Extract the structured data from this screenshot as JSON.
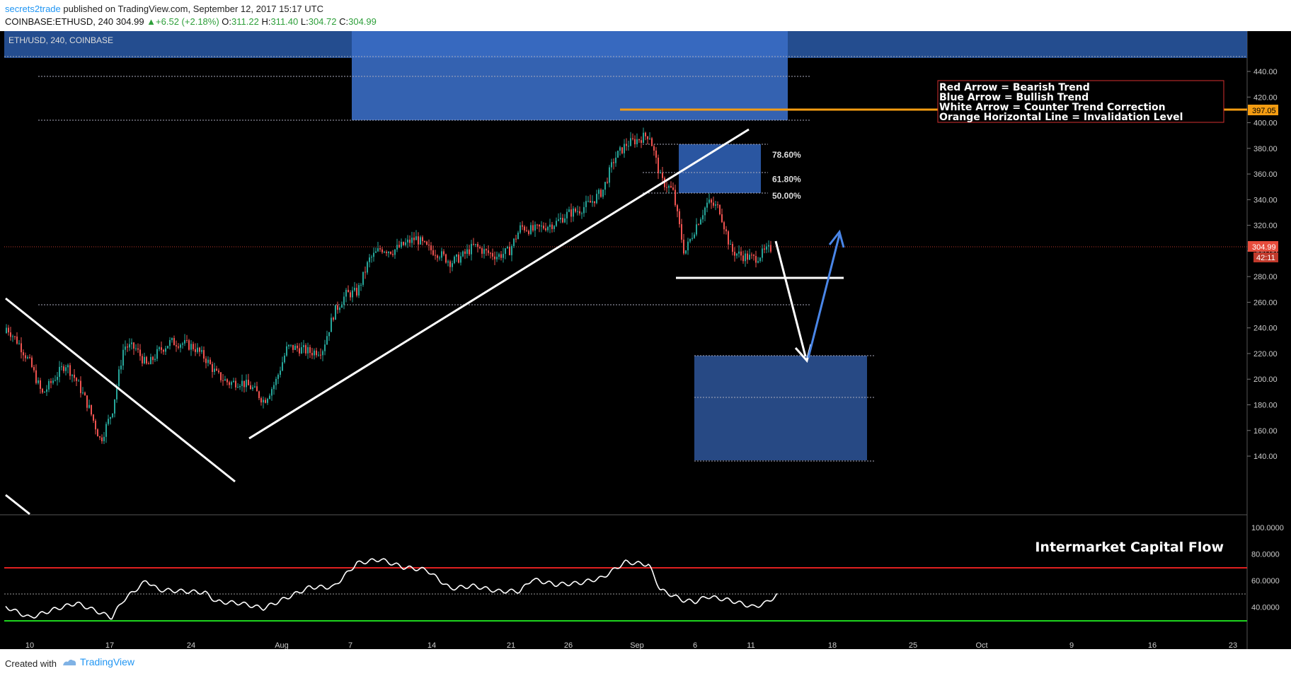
{
  "header": {
    "author": "secrets2trade",
    "published_text": " published on TradingView.com, September 12, 2017 15:17 UTC",
    "symbol": "COINBASE:ETHUSD, 240",
    "last": "304.99",
    "change": "+6.52 (+2.18%)",
    "o_label": "O:",
    "open": "311.22",
    "h_label": "H:",
    "high": "311.40",
    "l_label": "L:",
    "low": "304.72",
    "c_label": "C:",
    "close": "304.99"
  },
  "pane_label": "ETH/USD, 240, COINBASE",
  "legend_box": [
    "Red Arrow = Bearish Trend",
    "Blue Arrow = Bullish Trend",
    "White Arrow = Counter Trend Correction",
    "Orange Horizontal Line = Invalidation Level"
  ],
  "indicator_title": "Intermarket Capital Flow",
  "price_badges": {
    "invalidation": "397.05",
    "last": "304.99",
    "countdown": "42:11"
  },
  "footer": {
    "created": "Created with",
    "brand": "TradingView"
  },
  "colors": {
    "bull": "#26a69a",
    "bear": "#ef5350",
    "zone": "#2a5aa8",
    "orange": "#f39c12",
    "blue_arrow": "#4a86e8",
    "red_line": "#d32f2f",
    "green_line": "#1ed41e"
  },
  "chart_data": [
    {
      "type": "candlestick",
      "title": "",
      "x_tick_labels": [
        "10",
        "17",
        "24",
        "Aug",
        "7",
        "14",
        "21",
        "26",
        "Sep",
        "6",
        "11",
        "18",
        "25",
        "Oct",
        "9",
        "16",
        "23"
      ],
      "y_tick_labels": [
        "440.00",
        "420.00",
        "400.00",
        "380.00",
        "360.00",
        "340.00",
        "320.00",
        "300.00",
        "280.00",
        "260.00",
        "240.00",
        "220.00",
        "200.00",
        "180.00",
        "160.00",
        "140.00"
      ],
      "ylim": [
        130,
        446
      ],
      "grid": false,
      "fib_levels": [
        {
          "label": "78.60%",
          "value": 375
        },
        {
          "label": "61.80%",
          "value": 356
        },
        {
          "label": "50.00%",
          "value": 343
        }
      ],
      "invalidation_level": 397.05,
      "last_price": 304.99,
      "support_level": 285,
      "price_path": [
        {
          "d": "2017-07-06",
          "p": 236
        },
        {
          "d": "2017-07-07",
          "p": 243
        },
        {
          "d": "2017-07-08",
          "p": 240
        },
        {
          "d": "2017-07-09",
          "p": 228
        },
        {
          "d": "2017-07-10",
          "p": 212
        },
        {
          "d": "2017-07-11",
          "p": 188
        },
        {
          "d": "2017-07-12",
          "p": 200
        },
        {
          "d": "2017-07-13",
          "p": 212
        },
        {
          "d": "2017-07-14",
          "p": 198
        },
        {
          "d": "2017-07-15",
          "p": 178
        },
        {
          "d": "2017-07-16",
          "p": 152
        },
        {
          "d": "2017-07-17",
          "p": 175
        },
        {
          "d": "2017-07-18",
          "p": 226
        },
        {
          "d": "2017-07-19",
          "p": 224
        },
        {
          "d": "2017-07-20",
          "p": 210
        },
        {
          "d": "2017-07-21",
          "p": 222
        },
        {
          "d": "2017-07-22",
          "p": 229
        },
        {
          "d": "2017-07-23",
          "p": 228
        },
        {
          "d": "2017-07-24",
          "p": 225
        },
        {
          "d": "2017-07-25",
          "p": 216
        },
        {
          "d": "2017-07-26",
          "p": 203
        },
        {
          "d": "2017-07-27",
          "p": 197
        },
        {
          "d": "2017-07-28",
          "p": 198
        },
        {
          "d": "2017-07-29",
          "p": 193
        },
        {
          "d": "2017-07-30",
          "p": 183
        },
        {
          "d": "2017-07-31",
          "p": 198
        },
        {
          "d": "2017-08-01",
          "p": 225
        },
        {
          "d": "2017-08-02",
          "p": 224
        },
        {
          "d": "2017-08-03",
          "p": 221
        },
        {
          "d": "2017-08-04",
          "p": 223
        },
        {
          "d": "2017-08-05",
          "p": 252
        },
        {
          "d": "2017-08-06",
          "p": 266
        },
        {
          "d": "2017-08-07",
          "p": 268
        },
        {
          "d": "2017-08-08",
          "p": 293
        },
        {
          "d": "2017-08-09",
          "p": 302
        },
        {
          "d": "2017-08-10",
          "p": 300
        },
        {
          "d": "2017-08-11",
          "p": 305
        },
        {
          "d": "2017-08-12",
          "p": 310
        },
        {
          "d": "2017-08-13",
          "p": 302
        },
        {
          "d": "2017-08-14",
          "p": 298
        },
        {
          "d": "2017-08-15",
          "p": 291
        },
        {
          "d": "2017-08-16",
          "p": 296
        },
        {
          "d": "2017-08-17",
          "p": 304
        },
        {
          "d": "2017-08-18",
          "p": 299
        },
        {
          "d": "2017-08-19",
          "p": 296
        },
        {
          "d": "2017-08-20",
          "p": 300
        },
        {
          "d": "2017-08-21",
          "p": 319
        },
        {
          "d": "2017-08-22",
          "p": 316
        },
        {
          "d": "2017-08-23",
          "p": 319
        },
        {
          "d": "2017-08-24",
          "p": 322
        },
        {
          "d": "2017-08-25",
          "p": 329
        },
        {
          "d": "2017-08-26",
          "p": 332
        },
        {
          "d": "2017-08-27",
          "p": 338
        },
        {
          "d": "2017-08-28",
          "p": 347
        },
        {
          "d": "2017-08-29",
          "p": 372
        },
        {
          "d": "2017-08-30",
          "p": 383
        },
        {
          "d": "2017-08-31",
          "p": 387
        },
        {
          "d": "2017-09-01",
          "p": 391
        },
        {
          "d": "2017-09-02",
          "p": 355
        },
        {
          "d": "2017-09-03",
          "p": 347
        },
        {
          "d": "2017-09-04",
          "p": 298
        },
        {
          "d": "2017-09-05",
          "p": 320
        },
        {
          "d": "2017-09-06",
          "p": 338
        },
        {
          "d": "2017-09-07",
          "p": 333
        },
        {
          "d": "2017-09-08",
          "p": 300
        },
        {
          "d": "2017-09-09",
          "p": 296
        },
        {
          "d": "2017-09-10",
          "p": 294
        },
        {
          "d": "2017-09-11",
          "p": 300
        },
        {
          "d": "2017-09-12",
          "p": 305
        }
      ]
    },
    {
      "type": "line",
      "title": "Intermarket Capital Flow",
      "y_tick_labels": [
        "100.0000",
        "80.0000",
        "60.0000",
        "40.0000"
      ],
      "ylim": [
        22,
        103
      ],
      "reference_lines": [
        70,
        50,
        30
      ],
      "series": [
        {
          "values": [
            {
              "d": "2017-07-06",
              "v": 42
            },
            {
              "d": "2017-07-08",
              "v": 40
            },
            {
              "d": "2017-07-10",
              "v": 32
            },
            {
              "d": "2017-07-12",
              "v": 38
            },
            {
              "d": "2017-07-14",
              "v": 43
            },
            {
              "d": "2017-07-16",
              "v": 36
            },
            {
              "d": "2017-07-17",
              "v": 32
            },
            {
              "d": "2017-07-18",
              "v": 45
            },
            {
              "d": "2017-07-20",
              "v": 60
            },
            {
              "d": "2017-07-21",
              "v": 53
            },
            {
              "d": "2017-07-23",
              "v": 52
            },
            {
              "d": "2017-07-25",
              "v": 51
            },
            {
              "d": "2017-07-26",
              "v": 44
            },
            {
              "d": "2017-07-28",
              "v": 43
            },
            {
              "d": "2017-07-30",
              "v": 39
            },
            {
              "d": "2017-08-01",
              "v": 47
            },
            {
              "d": "2017-08-03",
              "v": 55
            },
            {
              "d": "2017-08-05",
              "v": 55
            },
            {
              "d": "2017-08-07",
              "v": 73
            },
            {
              "d": "2017-08-09",
              "v": 76
            },
            {
              "d": "2017-08-11",
              "v": 70
            },
            {
              "d": "2017-08-13",
              "v": 68
            },
            {
              "d": "2017-08-15",
              "v": 54
            },
            {
              "d": "2017-08-17",
              "v": 56
            },
            {
              "d": "2017-08-19",
              "v": 52
            },
            {
              "d": "2017-08-21",
              "v": 52
            },
            {
              "d": "2017-08-22",
              "v": 61
            },
            {
              "d": "2017-08-24",
              "v": 57
            },
            {
              "d": "2017-08-26",
              "v": 58
            },
            {
              "d": "2017-08-28",
              "v": 62
            },
            {
              "d": "2017-08-30",
              "v": 74
            },
            {
              "d": "2017-09-01",
              "v": 72
            },
            {
              "d": "2017-09-02",
              "v": 53
            },
            {
              "d": "2017-09-04",
              "v": 45
            },
            {
              "d": "2017-09-05",
              "v": 44
            },
            {
              "d": "2017-09-06",
              "v": 48
            },
            {
              "d": "2017-09-08",
              "v": 45
            },
            {
              "d": "2017-09-10",
              "v": 40
            },
            {
              "d": "2017-09-11",
              "v": 43
            },
            {
              "d": "2017-09-12",
              "v": 49
            }
          ]
        }
      ]
    }
  ]
}
